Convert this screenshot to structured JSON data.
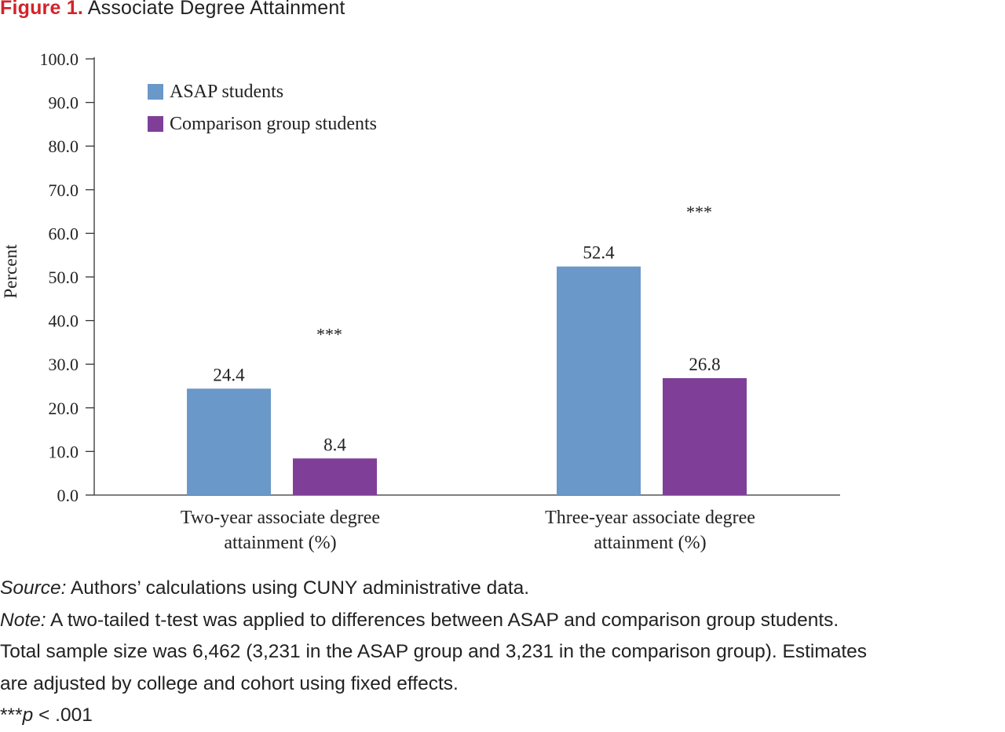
{
  "figure": {
    "label": "Figure 1.",
    "title": "Associate Degree Attainment"
  },
  "chart_data": {
    "type": "bar",
    "categories": [
      [
        "Two-year associate degree",
        "attainment (%)"
      ],
      [
        "Three-year associate degree",
        "attainment (%)"
      ]
    ],
    "series": [
      {
        "name": "ASAP students",
        "values": [
          24.4,
          52.4
        ],
        "color": "#6a98c9"
      },
      {
        "name": "Comparison group students",
        "values": [
          8.4,
          26.8
        ],
        "color": "#7f3f98"
      }
    ],
    "value_labels": [
      [
        "24.4",
        "52.4"
      ],
      [
        "8.4",
        "26.8"
      ]
    ],
    "significance": [
      "***",
      "***"
    ],
    "ylabel": "Percent",
    "ylim": [
      0,
      100
    ],
    "yticks": [
      "0.0",
      "10.0",
      "20.0",
      "30.0",
      "40.0",
      "50.0",
      "60.0",
      "70.0",
      "80.0",
      "90.0",
      "100.0"
    ],
    "legend_position": "top-left",
    "grid": false
  },
  "notes": {
    "source_label": "Source:",
    "source_text": " Authors’ calculations using CUNY administrative data.",
    "note_label": "Note:",
    "note_line1": " A two-tailed t-test was applied to differences between ASAP and comparison group students.",
    "note_line2": "Total sample size was 6,462 (3,231 in the ASAP group and 3,231 in the comparison group). Estimates",
    "note_line3": "are adjusted by college and cohort using fixed effects.",
    "sig_stars": "***",
    "sig_p": "p",
    "sig_rest": " < .001"
  }
}
